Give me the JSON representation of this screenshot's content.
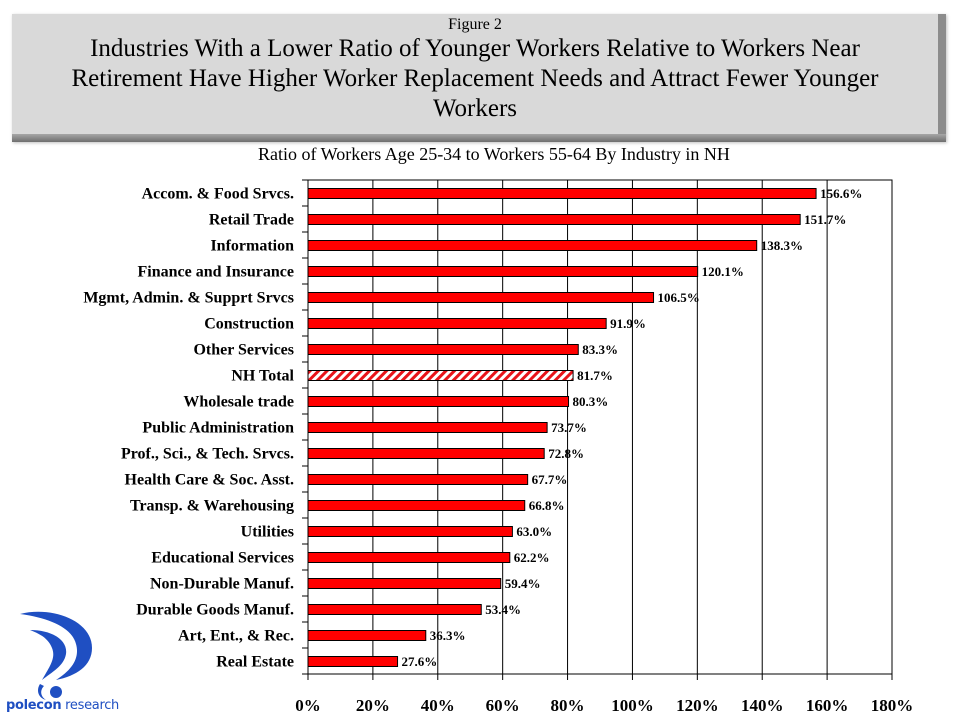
{
  "header": {
    "figure_label": "Figure 2",
    "title": "Industries With a Lower Ratio of Younger Workers Relative to Workers Near Retirement Have Higher Worker Replacement Needs and Attract Fewer Younger Workers"
  },
  "logo": {
    "name_bold": "polecon",
    "name_rest": " research",
    "color": "#1f4fc2"
  },
  "chart_data": {
    "type": "bar",
    "orientation": "horizontal",
    "title": "Ratio of Workers Age 25-34 to Workers 55-64 By Industry in NH",
    "xlabel": "",
    "ylabel": "",
    "xlim": [
      0,
      180
    ],
    "x_ticks": [
      0,
      20,
      40,
      60,
      80,
      100,
      120,
      140,
      160,
      180
    ],
    "x_tick_labels": [
      "0%",
      "20%",
      "40%",
      "60%",
      "80%",
      "100%",
      "120%",
      "140%",
      "160%",
      "180%"
    ],
    "grid": "vertical",
    "legend": "none",
    "unit": "%",
    "bar_color": "#ff0000",
    "highlight_style": "hatched",
    "categories": [
      "Accom. & Food Srvcs.",
      "Retail Trade",
      "Information",
      "Finance and Insurance",
      "Mgmt, Admin. & Supprt Srvcs",
      "Construction",
      "Other Services",
      "NH Total",
      "Wholesale trade",
      "Public Administration",
      "Prof., Sci., & Tech. Srvcs.",
      "Health Care & Soc. Asst.",
      "Transp. & Warehousing",
      "Utilities",
      "Educational Services",
      "Non-Durable Manuf.",
      "Durable Goods Manuf.",
      "Art, Ent., &  Rec.",
      "Real Estate"
    ],
    "values": [
      156.6,
      151.7,
      138.3,
      120.1,
      106.5,
      91.9,
      83.3,
      81.7,
      80.3,
      73.7,
      72.8,
      67.7,
      66.8,
      63.0,
      62.2,
      59.4,
      53.4,
      36.3,
      27.6
    ],
    "value_labels": [
      "156.6%",
      "151.7%",
      "138.3%",
      "120.1%",
      "106.5%",
      "91.9%",
      "83.3%",
      "81.7%",
      "80.3%",
      "73.7%",
      "72.8%",
      "67.7%",
      "66.8%",
      "63.0%",
      "62.2%",
      "59.4%",
      "53.4%",
      "36.3%",
      "27.6%"
    ],
    "highlighted": [
      "NH Total"
    ]
  }
}
